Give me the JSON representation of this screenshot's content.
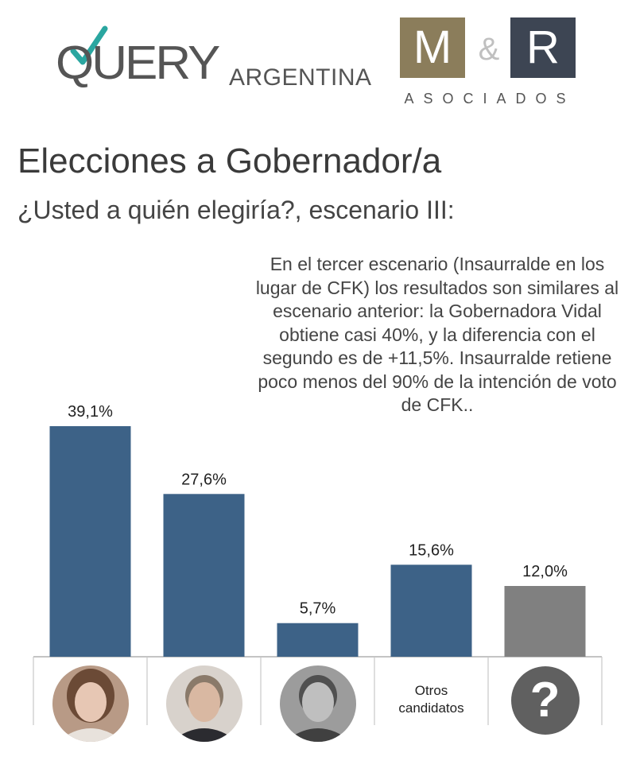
{
  "logos": {
    "query_word": "QUERY",
    "query_suffix": "ARGENTINA",
    "mr_m": "M",
    "mr_amp": "&",
    "mr_r": "R",
    "mr_sub": "ASOCIADOS",
    "colors": {
      "query_text": "#555555",
      "query_check": "#2aa6a0",
      "mr_m_bg": "#8b7d5b",
      "mr_r_bg": "#3d4553"
    }
  },
  "header": {
    "title": "Elecciones a Gobernador/a",
    "subtitle": "¿Usted a quién elegiría?, escenario III:"
  },
  "annotation": "En el tercer escenario (Insaurralde en los lugar de CFK) los resultados son similares al escenario anterior: la Gobernadora Vidal obtiene casi 40%, y la diferencia con el segundo es de +11,5%. Insaurralde retiene poco menos del 90% de la intención de voto de CFK..",
  "chart_data": {
    "type": "bar",
    "categories": [
      "candidate-1-photo",
      "candidate-2-photo",
      "candidate-3-photo",
      "Otros candidatos",
      "?"
    ],
    "category_labels": [
      "",
      "",
      "",
      "Otros candidatos",
      "?"
    ],
    "values": [
      39.1,
      27.6,
      5.7,
      15.6,
      12.0
    ],
    "value_labels": [
      "39,1%",
      "27,6%",
      "5,7%",
      "15,6%",
      "12,0%"
    ],
    "bar_colors": [
      "#3d6287",
      "#3d6287",
      "#3d6287",
      "#3d6287",
      "#808080"
    ],
    "ylim": [
      0,
      39.1
    ],
    "grid": false,
    "legend": "none",
    "title": "",
    "xlabel": "",
    "ylabel": ""
  }
}
